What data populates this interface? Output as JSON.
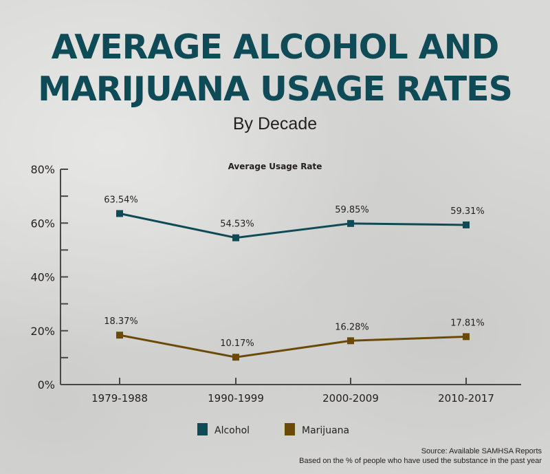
{
  "header": {
    "title_line1": "AVERAGE ALCOHOL AND",
    "title_line2": "MARIJUANA USAGE RATES",
    "subtitle": "By Decade"
  },
  "chart_data": {
    "type": "line",
    "title": "Average Usage Rate",
    "xlabel": "",
    "ylabel": "",
    "categories": [
      "1979-1988",
      "1990-1999",
      "2000-2009",
      "2010-2017"
    ],
    "series": [
      {
        "name": "Alcohol",
        "color": "#0f4a57",
        "values": [
          63.54,
          54.53,
          59.85,
          59.31
        ],
        "labels": [
          "63.54%",
          "54.53%",
          "59.85%",
          "59.31%"
        ]
      },
      {
        "name": "Marijuana",
        "color": "#6b4a08",
        "values": [
          18.37,
          10.17,
          16.28,
          17.81
        ],
        "labels": [
          "18.37%",
          "10.17%",
          "16.28%",
          "17.81%"
        ]
      }
    ],
    "ylim": [
      0,
      80
    ],
    "yticks": [
      0,
      20,
      40,
      60,
      80
    ],
    "ytick_labels": [
      "0%",
      "20%",
      "40%",
      "60%",
      "80%"
    ],
    "minor_yticks": [
      10,
      30,
      50,
      70
    ],
    "grid": false,
    "legend_position": "bottom-center"
  },
  "footer": {
    "source": "Source: Available SAMHSA Reports",
    "note": "Based on the % of people who have used the substance in the past year"
  }
}
